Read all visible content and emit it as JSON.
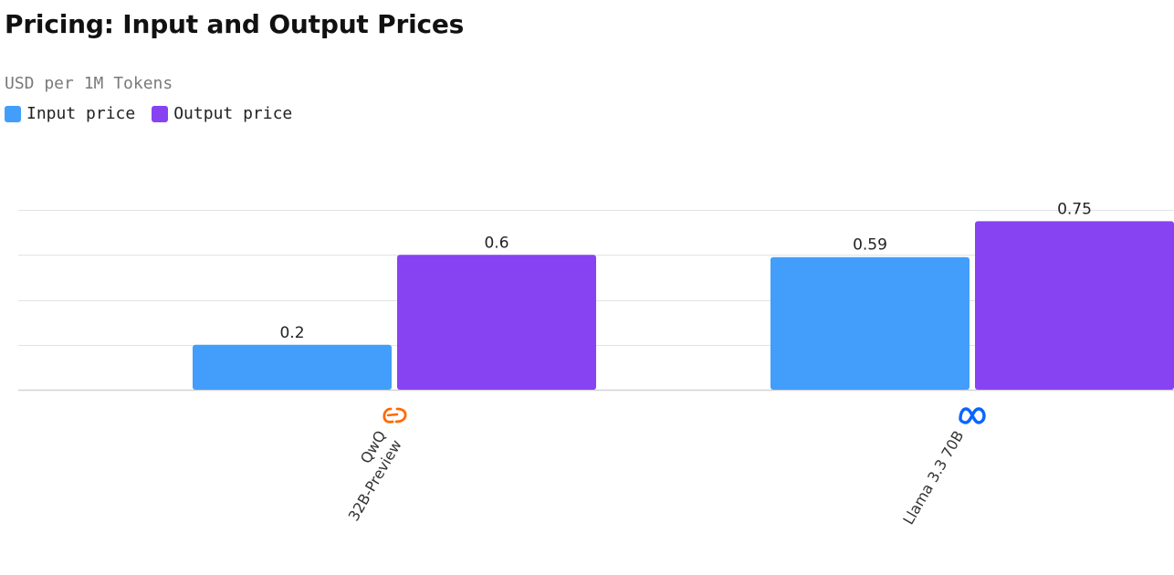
{
  "chart_data": {
    "type": "bar",
    "title": "Pricing: Input and Output Prices",
    "subtitle": "USD per 1M Tokens",
    "categories": [
      "QwQ 32B-Preview",
      "Llama 3.3 70B"
    ],
    "category_lines": [
      [
        "QwQ",
        "32B-Preview"
      ],
      [
        "Llama 3.3 70B"
      ]
    ],
    "category_icons": [
      "alibaba-logo-icon",
      "meta-logo-icon"
    ],
    "series": [
      {
        "name": "Input price",
        "values": [
          0.2,
          0.59
        ],
        "color": "#429efa"
      },
      {
        "name": "Output price",
        "values": [
          0.6,
          0.75
        ],
        "color": "#8743f2"
      }
    ],
    "ylim": [
      0,
      0.8
    ],
    "grid": true,
    "legend": "top-left",
    "xlabel": "",
    "ylabel": ""
  }
}
